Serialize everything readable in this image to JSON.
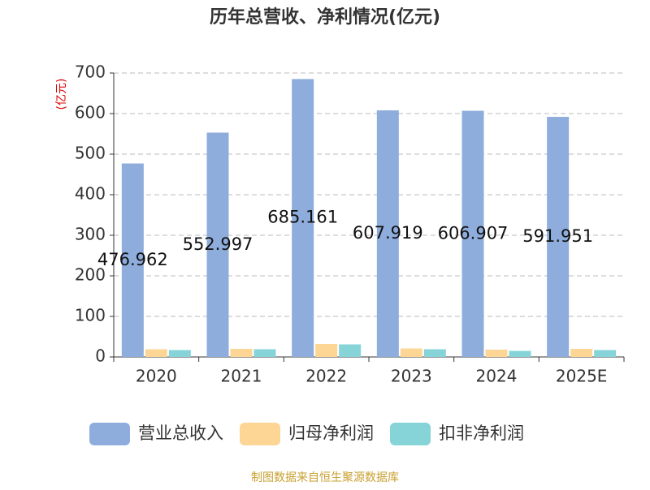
{
  "chart_data": {
    "type": "bar",
    "title": "历年总营收、净利情况(亿元)",
    "y_label": "(亿元)",
    "categories": [
      "2020",
      "2021",
      "2022",
      "2023",
      "2024",
      "2025E"
    ],
    "series": [
      {
        "name": "营业总收入",
        "color": "#8eaddc",
        "values": [
          476.962,
          552.997,
          685.161,
          607.919,
          606.907,
          591.951
        ],
        "data_labels": true
      },
      {
        "name": "归母净利润",
        "color": "#fdd594",
        "values": [
          19,
          20,
          32,
          21,
          18,
          20
        ]
      },
      {
        "name": "扣非净利润",
        "color": "#86d4d8",
        "values": [
          17,
          19,
          31,
          19,
          15,
          17
        ]
      }
    ],
    "ylim": [
      0,
      700
    ],
    "yticks": [
      0,
      100,
      200,
      300,
      400,
      500,
      600,
      700
    ],
    "grid": true,
    "legend": "bottom",
    "source": "制图数据来自恒生聚源数据库"
  }
}
